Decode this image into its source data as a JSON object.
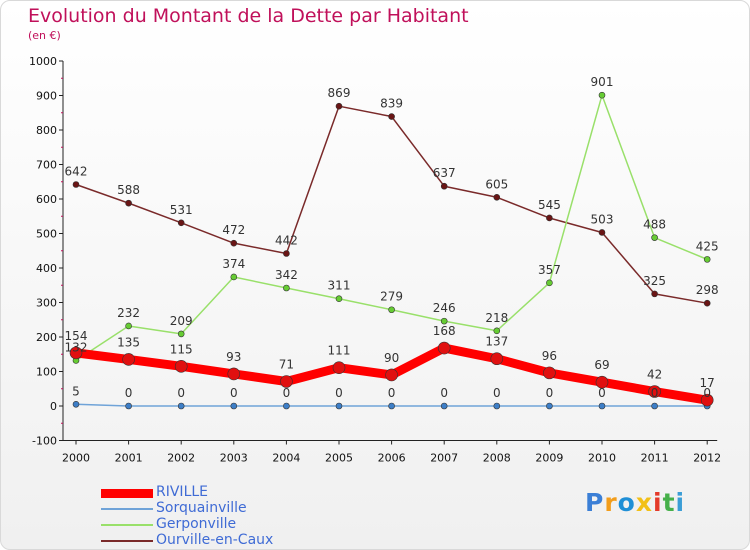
{
  "title": "Evolution du Montant de la Dette par Habitant",
  "subtitle": "(en €)",
  "chart_data": {
    "type": "line",
    "title": "Evolution du Montant de la Dette par Habitant",
    "ylabel": "(en €)",
    "xlabel": "",
    "x": [
      "2000",
      "2001",
      "2002",
      "2003",
      "2004",
      "2005",
      "2006",
      "2007",
      "2008",
      "2009",
      "2010",
      "2011",
      "2012"
    ],
    "ylim": [
      -100,
      1000
    ],
    "yticks": [
      -100,
      0,
      100,
      200,
      300,
      400,
      500,
      600,
      700,
      800,
      900,
      1000
    ],
    "grid": false,
    "legend_position": "bottom-left",
    "series": [
      {
        "name": "RIVILLE",
        "color": "#ff0000",
        "marker": "#e01010",
        "values": [
          154,
          135,
          115,
          93,
          71,
          111,
          90,
          168,
          137,
          96,
          69,
          42,
          17
        ]
      },
      {
        "name": "Sorquainville",
        "color": "#6fa3d8",
        "marker": "#3d7ec7",
        "values": [
          5,
          0,
          0,
          0,
          0,
          0,
          0,
          0,
          0,
          0,
          0,
          0,
          0
        ]
      },
      {
        "name": "Gerponville",
        "color": "#99e06a",
        "marker": "#66cc33",
        "values": [
          132,
          232,
          209,
          374,
          342,
          311,
          279,
          246,
          218,
          357,
          901,
          488,
          425
        ]
      },
      {
        "name": "Ourville-en-Caux",
        "color": "#7a2a2a",
        "marker": "#6a1515",
        "values": [
          642,
          588,
          531,
          472,
          442,
          869,
          839,
          637,
          605,
          545,
          503,
          325,
          298
        ]
      }
    ]
  },
  "logo": {
    "letters": [
      "P",
      "r",
      "o",
      "x",
      "i",
      "t",
      "i"
    ],
    "colors": [
      "#3b7fd6",
      "#f29d1b",
      "#1f8fd6",
      "#f2c018",
      "#e43a2a",
      "#46b04a",
      "#3b9ed6"
    ]
  }
}
